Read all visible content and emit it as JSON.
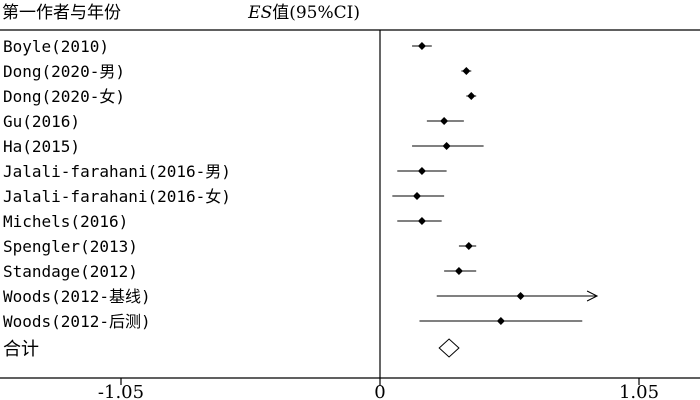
{
  "chart_data": {
    "type": "forest",
    "header_left": "第一作者与年份",
    "header_right_prefix": "ES",
    "header_right_suffix": "值(95%CI)",
    "xticks": [
      {
        "value": -1.05,
        "label": "-1.05"
      },
      {
        "value": 0,
        "label": "0"
      },
      {
        "value": 1.05,
        "label": "1.05"
      }
    ],
    "xlim": [
      -1.35,
      1.35
    ],
    "reference_line": 0,
    "studies": [
      {
        "label": "Boyle(2010)",
        "es": 0.17,
        "lo": 0.13,
        "hi": 0.21,
        "arrow": false
      },
      {
        "label": "Dong(2020-男)",
        "es": 0.35,
        "lo": 0.33,
        "hi": 0.37,
        "arrow": false
      },
      {
        "label": "Dong(2020-女)",
        "es": 0.37,
        "lo": 0.35,
        "hi": 0.39,
        "arrow": false
      },
      {
        "label": "Gu(2016)",
        "es": 0.26,
        "lo": 0.19,
        "hi": 0.34,
        "arrow": false
      },
      {
        "label": "Ha(2015)",
        "es": 0.27,
        "lo": 0.13,
        "hi": 0.42,
        "arrow": false
      },
      {
        "label": "Jalali-farahani(2016-男)",
        "es": 0.17,
        "lo": 0.07,
        "hi": 0.27,
        "arrow": false
      },
      {
        "label": "Jalali-farahani(2016-女)",
        "es": 0.15,
        "lo": 0.05,
        "hi": 0.26,
        "arrow": false
      },
      {
        "label": "Michels(2016)",
        "es": 0.17,
        "lo": 0.07,
        "hi": 0.25,
        "arrow": false
      },
      {
        "label": "Spengler(2013)",
        "es": 0.36,
        "lo": 0.32,
        "hi": 0.39,
        "arrow": false
      },
      {
        "label": "Standage(2012)",
        "es": 0.32,
        "lo": 0.26,
        "hi": 0.39,
        "arrow": false
      },
      {
        "label": "Woods(2012-基线)",
        "es": 0.57,
        "lo": 0.23,
        "hi": 0.88,
        "arrow": true
      },
      {
        "label": "Woods(2012-后测)",
        "es": 0.49,
        "lo": 0.16,
        "hi": 0.82,
        "arrow": false
      }
    ],
    "total": {
      "label": "合计",
      "es": 0.28,
      "lo": 0.24,
      "hi": 0.32
    }
  }
}
